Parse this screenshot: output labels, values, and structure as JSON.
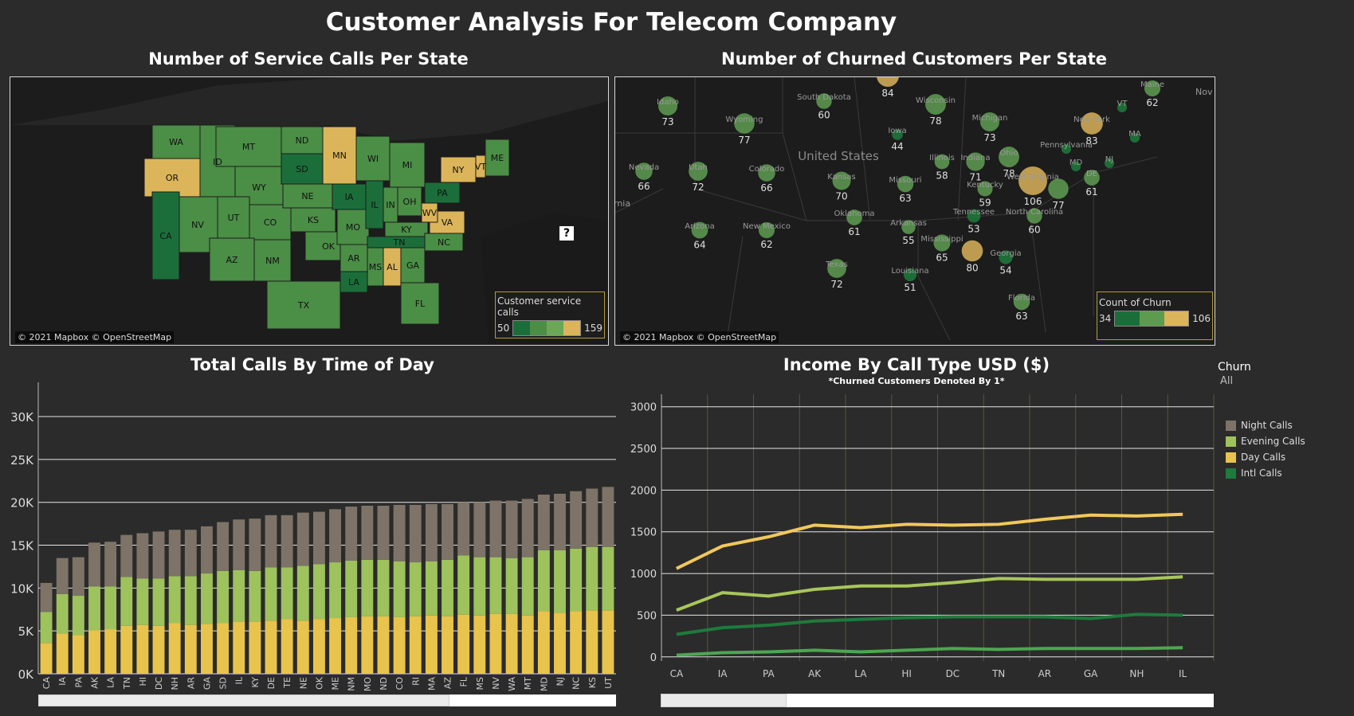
{
  "title": "Customer Analysis For Telecom Company",
  "map1": {
    "title": "Number of Service Calls Per State",
    "attribution": "© 2021 Mapbox © OpenStreetMap",
    "legend_title": "Customer service calls",
    "legend_min": "50",
    "legend_max": "159",
    "help_glyph": "?",
    "states": [
      {
        "abbr": "WA",
        "level": 1
      },
      {
        "abbr": "OR",
        "level": 3
      },
      {
        "abbr": "ID",
        "level": 1
      },
      {
        "abbr": "MT",
        "level": 1
      },
      {
        "abbr": "WY",
        "level": 1
      },
      {
        "abbr": "ND",
        "level": 1
      },
      {
        "abbr": "SD",
        "level": 0
      },
      {
        "abbr": "MN",
        "level": 3
      },
      {
        "abbr": "NV",
        "level": 1
      },
      {
        "abbr": "UT",
        "level": 1
      },
      {
        "abbr": "CO",
        "level": 1
      },
      {
        "abbr": "NE",
        "level": 1
      },
      {
        "abbr": "KS",
        "level": 1
      },
      {
        "abbr": "CA",
        "level": 0
      },
      {
        "abbr": "AZ",
        "level": 1
      },
      {
        "abbr": "NM",
        "level": 1
      },
      {
        "abbr": "TX",
        "level": 1
      },
      {
        "abbr": "OK",
        "level": 1
      },
      {
        "abbr": "IA",
        "level": 0
      },
      {
        "abbr": "MO",
        "level": 1
      },
      {
        "abbr": "AR",
        "level": 1
      },
      {
        "abbr": "LA",
        "level": 0
      },
      {
        "abbr": "WI",
        "level": 1
      },
      {
        "abbr": "IL",
        "level": 0
      },
      {
        "abbr": "MI",
        "level": 1
      },
      {
        "abbr": "IN",
        "level": 1
      },
      {
        "abbr": "OH",
        "level": 1
      },
      {
        "abbr": "KY",
        "level": 1
      },
      {
        "abbr": "TN",
        "level": 0
      },
      {
        "abbr": "MS",
        "level": 1
      },
      {
        "abbr": "AL",
        "level": 3
      },
      {
        "abbr": "GA",
        "level": 1
      },
      {
        "abbr": "FL",
        "level": 1
      },
      {
        "abbr": "NC",
        "level": 1
      },
      {
        "abbr": "VA",
        "level": 3
      },
      {
        "abbr": "WV",
        "level": 3
      },
      {
        "abbr": "PA",
        "level": 0
      },
      {
        "abbr": "NY",
        "level": 3
      },
      {
        "abbr": "VT",
        "level": 3
      },
      {
        "abbr": "ME",
        "level": 1
      }
    ]
  },
  "map2": {
    "title": "Number of Churned Customers Per State",
    "attribution": "© 2021 Mapbox © OpenStreetMap",
    "legend_title": "Count of Churn",
    "legend_min": "34",
    "legend_max": "106",
    "country_label": "United States",
    "edge_labels": [
      "rnia",
      "Nov"
    ],
    "points": [
      {
        "name": "Idaho",
        "count": 73
      },
      {
        "name": "Wyoming",
        "count": 77
      },
      {
        "name": "South Dakota",
        "count": 60
      },
      {
        "name": "",
        "count": 84
      },
      {
        "name": "Wisconsin",
        "count": 78
      },
      {
        "name": "Michigan",
        "count": 73
      },
      {
        "name": "Maine",
        "count": 62
      },
      {
        "name": "New York",
        "count": 83
      },
      {
        "name": "Iowa",
        "count": 44
      },
      {
        "name": "Nevada",
        "count": 66
      },
      {
        "name": "Utah",
        "count": 72
      },
      {
        "name": "Colorado",
        "count": 66
      },
      {
        "name": "Kansas",
        "count": 70
      },
      {
        "name": "Missouri",
        "count": 63
      },
      {
        "name": "Illinois",
        "count": 58
      },
      {
        "name": "Indiana",
        "count": 71
      },
      {
        "name": "Ohio",
        "count": 78
      },
      {
        "name": "Pennsylvania",
        "count": ""
      },
      {
        "name": "West Virginia",
        "count": 106
      },
      {
        "name": "Kentucky",
        "count": 59
      },
      {
        "name": "",
        "count": 77
      },
      {
        "name": "DE",
        "count": 61
      },
      {
        "name": "Oklahoma",
        "count": 61
      },
      {
        "name": "Arizona",
        "count": 64
      },
      {
        "name": "New Mexico",
        "count": 62
      },
      {
        "name": "Arkansas",
        "count": 55
      },
      {
        "name": "Tennessee",
        "count": 53
      },
      {
        "name": "North Carolina",
        "count": 60
      },
      {
        "name": "Mississippi",
        "count": 65
      },
      {
        "name": "",
        "count": 80
      },
      {
        "name": "Georgia",
        "count": 54
      },
      {
        "name": "Texas",
        "count": 72
      },
      {
        "name": "Louisiana",
        "count": 51
      },
      {
        "name": "Florida",
        "count": 63
      },
      {
        "name": "VT",
        "count": ""
      },
      {
        "name": "MA",
        "count": ""
      },
      {
        "name": "NJ",
        "count": ""
      },
      {
        "name": "MD",
        "count": ""
      }
    ]
  },
  "chart_data": [
    {
      "type": "bar",
      "title": "Total Calls By Time of Day",
      "stacked": true,
      "categories": [
        "CA",
        "IA",
        "PA",
        "AK",
        "LA",
        "TN",
        "HI",
        "DC",
        "NH",
        "AR",
        "GA",
        "SD",
        "IL",
        "KY",
        "DE",
        "TE",
        "NE",
        "OK",
        "ME",
        "NM",
        "MO",
        "ND",
        "CO",
        "RI",
        "MA",
        "AZ",
        "FL",
        "MS",
        "NV",
        "WA",
        "MT",
        "MD",
        "NJ",
        "NC",
        "KS",
        "UT"
      ],
      "yticks": [
        "0K",
        "5K",
        "10K",
        "15K",
        "20K",
        "25K",
        "30K"
      ],
      "ylim": [
        0,
        34000
      ],
      "series": [
        {
          "name": "Day Calls",
          "color": "#e8c44c",
          "values": [
            3600,
            4700,
            4500,
            5100,
            5200,
            5600,
            5700,
            5600,
            5900,
            5700,
            5800,
            5900,
            6100,
            6100,
            6200,
            6400,
            6200,
            6400,
            6500,
            6600,
            6700,
            6700,
            6600,
            6700,
            6800,
            6700,
            6900,
            6800,
            7000,
            7000,
            6800,
            7300,
            7100,
            7300,
            7400,
            7400
          ]
        },
        {
          "name": "Evening Calls",
          "color": "#9ec25c",
          "values": [
            3600,
            4600,
            4600,
            5100,
            5000,
            5700,
            5400,
            5500,
            5500,
            5700,
            5900,
            6100,
            6000,
            5900,
            6200,
            6000,
            6400,
            6400,
            6500,
            6600,
            6600,
            6600,
            6500,
            6300,
            6300,
            6600,
            6900,
            6800,
            6600,
            6500,
            6800,
            7100,
            7300,
            7300,
            7400,
            7400
          ]
        },
        {
          "name": "Night Calls",
          "color": "#7d7367",
          "values": [
            3400,
            4200,
            4500,
            5100,
            5200,
            4900,
            5300,
            5500,
            5400,
            5400,
            5500,
            5700,
            5900,
            6100,
            6100,
            6100,
            6200,
            6100,
            6200,
            6300,
            6300,
            6300,
            6600,
            6700,
            6700,
            6500,
            6200,
            6400,
            6600,
            6700,
            6800,
            6500,
            6600,
            6700,
            6800,
            7000
          ]
        }
      ]
    },
    {
      "type": "line",
      "title": "Income By Call Type USD ($)",
      "subtitle": "*Churned Customers Denoted By 1*",
      "categories": [
        "CA",
        "IA",
        "PA",
        "AK",
        "LA",
        "HI",
        "DC",
        "TN",
        "AR",
        "GA",
        "NH",
        "IL"
      ],
      "yticks": [
        0,
        500,
        1000,
        1500,
        2000,
        2500,
        3000
      ],
      "ylim": [
        -50,
        3150
      ],
      "series": [
        {
          "name": "Day Calls",
          "color": "#f2c85b",
          "values": [
            1060,
            1330,
            1440,
            1580,
            1550,
            1590,
            1580,
            1590,
            1650,
            1700,
            1690,
            1710
          ]
        },
        {
          "name": "Evening Calls",
          "color": "#a8c65a",
          "values": [
            560,
            770,
            730,
            810,
            850,
            850,
            890,
            940,
            930,
            930,
            930,
            960
          ]
        },
        {
          "name": "Intl Calls",
          "color": "#1f7a3c",
          "values": [
            270,
            350,
            380,
            430,
            450,
            470,
            480,
            480,
            480,
            460,
            510,
            500
          ]
        },
        {
          "name": "",
          "color": "#4ea651",
          "values": [
            20,
            50,
            60,
            80,
            60,
            80,
            100,
            90,
            100,
            100,
            100,
            110
          ]
        }
      ],
      "legend": [
        {
          "name": "Night Calls",
          "color": "#7d7367"
        },
        {
          "name": "Evening Calls",
          "color": "#9ec25c"
        },
        {
          "name": "Day Calls",
          "color": "#e8c44c"
        },
        {
          "name": "Intl Calls",
          "color": "#1f7a3c"
        }
      ]
    }
  ],
  "filter": {
    "label": "Churn",
    "value": "All"
  },
  "colors": {
    "level0": "#1b6e3a",
    "level1": "#4b8e46",
    "level2": "#6aa858",
    "level3": "#dcb55a"
  }
}
